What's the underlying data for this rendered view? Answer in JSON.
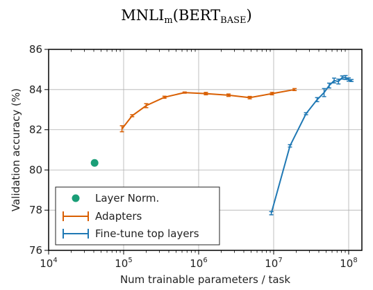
{
  "chart_data": {
    "type": "line",
    "title_main": "MNLI",
    "title_sub": "m",
    "title_paren_open": "(BERT",
    "title_paren_sub": "BASE",
    "title_paren_close": ")",
    "xlabel": "Num trainable parameters / task",
    "ylabel": "Validation accuracy (%)",
    "xscale": "log",
    "xlim": [
      10000,
      150000000
    ],
    "ylim": [
      76,
      86
    ],
    "x_ticks": [
      {
        "base": "10",
        "exp": "4",
        "value": 10000
      },
      {
        "base": "10",
        "exp": "5",
        "value": 100000
      },
      {
        "base": "10",
        "exp": "6",
        "value": 1000000
      },
      {
        "base": "10",
        "exp": "7",
        "value": 10000000
      },
      {
        "base": "10",
        "exp": "8",
        "value": 100000000
      }
    ],
    "y_ticks": [
      "76",
      "78",
      "80",
      "82",
      "84",
      "86"
    ],
    "grid": true,
    "legend_position": "lower-left",
    "series": [
      {
        "name": "Layer Norm.",
        "style": "point",
        "color": "#1a9e77",
        "x": [
          41000
        ],
        "y": [
          80.35
        ],
        "err": [
          0
        ]
      },
      {
        "name": "Adapters",
        "style": "line-errorbar",
        "color": "#d95f02",
        "x": [
          95000,
          130000,
          200000,
          350000,
          650000,
          1250000,
          2500000,
          4800000,
          9500000,
          19000000
        ],
        "y": [
          82.05,
          82.7,
          83.2,
          83.62,
          83.85,
          83.8,
          83.72,
          83.6,
          83.8,
          84.0
        ],
        "err": [
          0.15,
          0.05,
          0.1,
          0.05,
          0.03,
          0.06,
          0.06,
          0.06,
          0.06,
          0.05
        ]
      },
      {
        "name": "Fine-tune top layers",
        "style": "line-errorbar",
        "color": "#1f78b4",
        "x": [
          9300000,
          16500000,
          27000000,
          38000000,
          47000000,
          55000000,
          64000000,
          73000000,
          82000000,
          91000000,
          100000000,
          109000000
        ],
        "y": [
          77.85,
          81.2,
          82.8,
          83.5,
          83.85,
          84.2,
          84.45,
          84.4,
          84.6,
          84.6,
          84.5,
          84.45
        ],
        "err": [
          0.08,
          0.06,
          0.05,
          0.1,
          0.2,
          0.12,
          0.12,
          0.12,
          0.08,
          0.1,
          0.08,
          0.05
        ]
      }
    ]
  }
}
